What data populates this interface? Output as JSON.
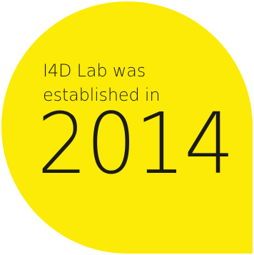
{
  "callout": {
    "line1": "I4D Lab was",
    "line2": "established in",
    "year": "2014",
    "fill_color": "#fbeb06"
  }
}
